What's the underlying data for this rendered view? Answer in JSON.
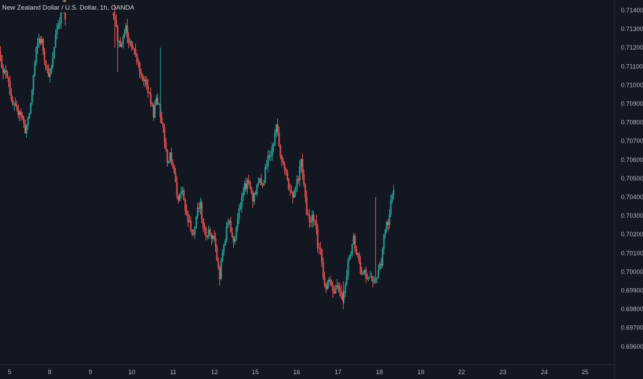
{
  "title": "New Zealand Dollar / U.S. Dollar, 1h, OANDA",
  "colors": {
    "background": "#131722",
    "up": "#26a69a",
    "down": "#ef5350",
    "axis_text": "#b2b5be",
    "axis_line": "#2a2e39"
  },
  "chart_data": {
    "type": "candlestick",
    "title": "New Zealand Dollar / U.S. Dollar, 1h, OANDA",
    "x_tick_labels": [
      "5",
      "8",
      "9",
      "10",
      "11",
      "12",
      "15",
      "16",
      "17",
      "18",
      "19",
      "22",
      "23",
      "24",
      "25"
    ],
    "y_tick_labels": [
      "0.71400",
      "0.71300",
      "0.71200",
      "0.71100",
      "0.71000",
      "0.70900",
      "0.70800",
      "0.70700",
      "0.70600",
      "0.70500",
      "0.70400",
      "0.70300",
      "0.70200",
      "0.70100",
      "0.70000",
      "0.69900",
      "0.69800",
      "0.69700",
      "0.69600"
    ],
    "ylim": [
      0.6954,
      0.7143
    ],
    "grid": false,
    "price_path": [
      [
        0,
        0.7118
      ],
      [
        4,
        0.7105
      ],
      [
        8,
        0.7108
      ],
      [
        12,
        0.7103
      ],
      [
        16,
        0.709
      ],
      [
        20,
        0.7088
      ],
      [
        24,
        0.7085
      ],
      [
        28,
        0.7087
      ],
      [
        32,
        0.7082
      ],
      [
        36,
        0.7076
      ],
      [
        40,
        0.708
      ],
      [
        44,
        0.709
      ],
      [
        48,
        0.7105
      ],
      [
        52,
        0.7118
      ],
      [
        56,
        0.7125
      ],
      [
        60,
        0.7123
      ],
      [
        64,
        0.7115
      ],
      [
        68,
        0.7108
      ],
      [
        72,
        0.7105
      ],
      [
        76,
        0.7113
      ],
      [
        80,
        0.7128
      ],
      [
        84,
        0.7133
      ],
      [
        88,
        0.7138
      ],
      [
        92,
        0.7145
      ],
      [
        95,
        0.713
      ],
      [
        162,
        0.7142
      ],
      [
        166,
        0.7135
      ],
      [
        170,
        0.7125
      ],
      [
        174,
        0.712
      ],
      [
        178,
        0.7128
      ],
      [
        182,
        0.713
      ],
      [
        186,
        0.7125
      ],
      [
        190,
        0.712
      ],
      [
        194,
        0.7118
      ],
      [
        198,
        0.7112
      ],
      [
        202,
        0.7108
      ],
      [
        206,
        0.7102
      ],
      [
        210,
        0.7105
      ],
      [
        214,
        0.7098
      ],
      [
        218,
        0.709
      ],
      [
        222,
        0.7085
      ],
      [
        226,
        0.7092
      ],
      [
        230,
        0.7088
      ],
      [
        234,
        0.708
      ],
      [
        238,
        0.707
      ],
      [
        242,
        0.706
      ],
      [
        246,
        0.7063
      ],
      [
        250,
        0.7055
      ],
      [
        254,
        0.7048
      ],
      [
        258,
        0.7038
      ],
      [
        262,
        0.7045
      ],
      [
        266,
        0.704
      ],
      [
        270,
        0.703
      ],
      [
        274,
        0.7025
      ],
      [
        278,
        0.7018
      ],
      [
        282,
        0.7022
      ],
      [
        286,
        0.7033
      ],
      [
        290,
        0.7035
      ],
      [
        294,
        0.7025
      ],
      [
        298,
        0.702
      ],
      [
        302,
        0.7022
      ],
      [
        306,
        0.7018
      ],
      [
        310,
        0.702
      ],
      [
        314,
        0.7005
      ],
      [
        318,
        0.6998
      ],
      [
        322,
        0.701
      ],
      [
        326,
        0.7018
      ],
      [
        330,
        0.7028
      ],
      [
        334,
        0.7022
      ],
      [
        338,
        0.7015
      ],
      [
        342,
        0.7025
      ],
      [
        346,
        0.7032
      ],
      [
        350,
        0.7038
      ],
      [
        354,
        0.7045
      ],
      [
        358,
        0.7048
      ],
      [
        362,
        0.7046
      ],
      [
        366,
        0.704
      ],
      [
        370,
        0.7043
      ],
      [
        374,
        0.705
      ],
      [
        378,
        0.7047
      ],
      [
        382,
        0.705
      ],
      [
        386,
        0.7058
      ],
      [
        390,
        0.7062
      ],
      [
        394,
        0.7065
      ],
      [
        398,
        0.7075
      ],
      [
        401,
        0.708
      ],
      [
        404,
        0.7068
      ],
      [
        408,
        0.706
      ],
      [
        412,
        0.7055
      ],
      [
        416,
        0.7048
      ],
      [
        420,
        0.7042
      ],
      [
        424,
        0.704
      ],
      [
        428,
        0.7045
      ],
      [
        432,
        0.705
      ],
      [
        436,
        0.706
      ],
      [
        440,
        0.7048
      ],
      [
        444,
        0.7032
      ],
      [
        448,
        0.7028
      ],
      [
        452,
        0.703
      ],
      [
        456,
        0.7028
      ],
      [
        460,
        0.7015
      ],
      [
        464,
        0.701
      ],
      [
        468,
        0.6998
      ],
      [
        472,
        0.6992
      ],
      [
        476,
        0.6995
      ],
      [
        480,
        0.699
      ],
      [
        484,
        0.6988
      ],
      [
        488,
        0.6993
      ],
      [
        492,
        0.699
      ],
      [
        496,
        0.6985
      ],
      [
        500,
        0.6995
      ],
      [
        504,
        0.7005
      ],
      [
        508,
        0.7012
      ],
      [
        512,
        0.7018
      ],
      [
        516,
        0.701
      ],
      [
        520,
        0.7005
      ],
      [
        524,
        0.6997
      ],
      [
        528,
        0.7
      ],
      [
        532,
        0.6995
      ],
      [
        536,
        0.6999
      ],
      [
        540,
        0.6993
      ],
      [
        544,
        0.6998
      ],
      [
        548,
        0.7
      ],
      [
        552,
        0.7005
      ],
      [
        556,
        0.7018
      ],
      [
        560,
        0.7025
      ],
      [
        564,
        0.703
      ],
      [
        568,
        0.7043
      ],
      [
        571,
        0.7045
      ]
    ]
  }
}
